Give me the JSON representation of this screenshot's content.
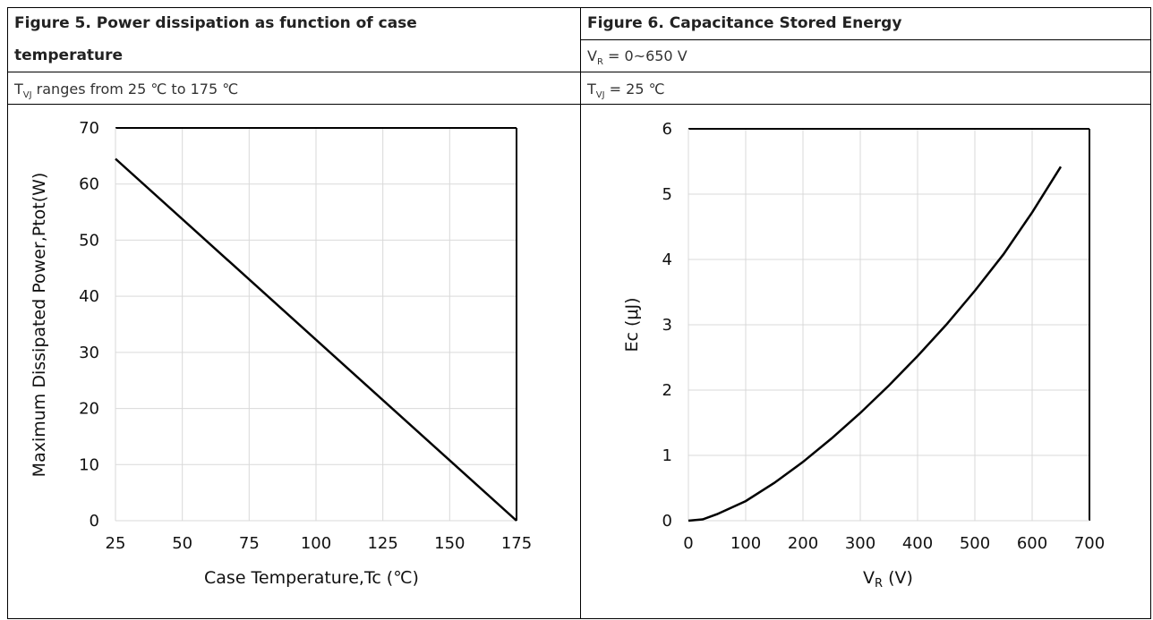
{
  "figure5": {
    "title_line1": "Figure 5. Power dissipation as function of case",
    "title_line2": "temperature",
    "condition_pre": "T",
    "condition_sub": "VJ",
    "condition_post": " ranges from 25 ℃ to 175 ℃"
  },
  "figure6": {
    "title": "Figure 6.  Capacitance Stored Energy",
    "range_pre": "V",
    "range_sub": "R",
    "range_post": " = 0~650 V",
    "condition_pre": "T",
    "condition_sub": "VJ",
    "condition_post": " = 25 ℃"
  },
  "chart_data": [
    {
      "type": "line",
      "title": "",
      "xlabel": "Case Temperature,Tc (℃)",
      "ylabel": "Maximum Dissipated Power,Ptot(W)",
      "xlim": [
        25,
        175
      ],
      "ylim": [
        0,
        70
      ],
      "xticks": [
        25,
        50,
        75,
        100,
        125,
        150,
        175
      ],
      "yticks": [
        0,
        10,
        20,
        30,
        40,
        50,
        60,
        70
      ],
      "grid": true,
      "series": [
        {
          "x": [
            25,
            175
          ],
          "y": [
            64.5,
            0
          ],
          "color": "#000000"
        }
      ]
    },
    {
      "type": "line",
      "title": "",
      "xlabel_pre": "V",
      "xlabel_sub": "R",
      "xlabel_post": " (V)",
      "ylabel": "Ec (μJ)",
      "xlim": [
        0,
        700
      ],
      "ylim": [
        0,
        6
      ],
      "xticks": [
        0,
        100,
        200,
        300,
        400,
        500,
        600,
        700
      ],
      "yticks": [
        0,
        1,
        2,
        3,
        4,
        5,
        6
      ],
      "grid": true,
      "series": [
        {
          "x": [
            0,
            25,
            50,
            100,
            150,
            200,
            250,
            300,
            350,
            400,
            450,
            500,
            550,
            600,
            650
          ],
          "y": [
            0,
            0.02,
            0.1,
            0.3,
            0.58,
            0.9,
            1.26,
            1.65,
            2.07,
            2.52,
            3.0,
            3.52,
            4.08,
            4.72,
            5.42
          ],
          "color": "#000000"
        }
      ]
    }
  ]
}
